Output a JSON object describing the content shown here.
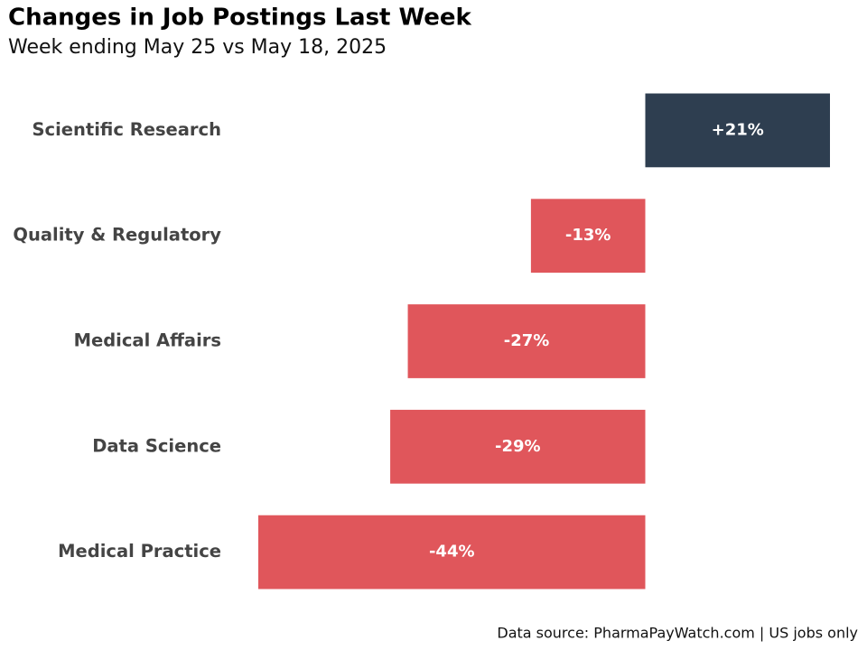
{
  "chart_data": {
    "type": "bar",
    "orientation": "horizontal",
    "title": "Changes in Job Postings Last Week",
    "subtitle": "Week ending May 25 vs May 18, 2025",
    "categories": [
      "Scientific Research",
      "Quality & Regulatory",
      "Medical Affairs",
      "Data Science",
      "Medical Practice"
    ],
    "values": [
      21,
      -13,
      -27,
      -29,
      -44
    ],
    "value_labels": [
      "+21%",
      "-13%",
      "-27%",
      "-29%",
      "-44%"
    ],
    "colors": {
      "positive": "#2e3e50",
      "negative": "#e0565b"
    },
    "source": "Data source: PharmaPayWatch.com | US jobs only"
  }
}
